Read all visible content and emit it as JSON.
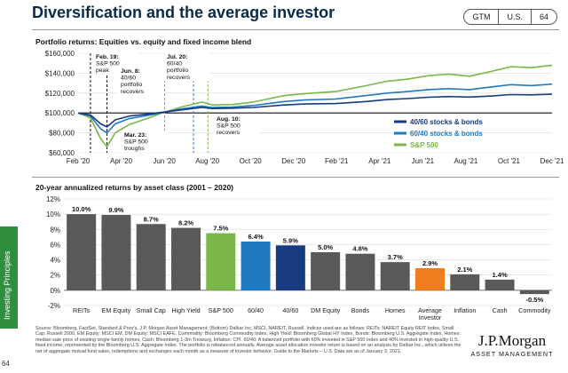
{
  "header": {
    "title": "Diversification and the average investor",
    "tags": [
      "GTM",
      "U.S.",
      "64"
    ]
  },
  "sidebar": {
    "label": "Investing Principles"
  },
  "page_number": "64",
  "footnote": "Source: Bloomberg, FactSet, Standard & Poor's, J.P. Morgan Asset Management; (Bottom) Dalbar Inc, MSCI, NAREIT, Russell. Indices used are as follows: REITs: NAREIT Equity REIT Index, Small Cap: Russell 2000, EM Equity: MSCI EM, DM Equity: MSCI EAFE, Commodity: Bloomberg Commodity Index, High Yield: Bloomberg Global HY Index, Bonds: Bloomberg U.S. Aggregate Index, Homes: median sale price of existing single-family homes, Cash: Bloomberg 1-3m Treasury, Inflation: CPI. 60/40: A balanced portfolio with 60% invested in S&P 500 Index and 40% invested in high-quality U.S. fixed income, represented by the Bloomberg U.S. Aggregate Index. The portfolio is rebalanced annually. Average asset allocation investor return is based on an analysis by Dalbar Inc., which utilizes the net of aggregate mutual fund sales, redemptions and exchanges each month as a measure of investor behavior. Guide to the Markets – U.S. Data are as of January 3, 2021.",
  "logo": {
    "name": "J.P.Morgan",
    "sub": "ASSET MANAGEMENT"
  },
  "chart_data": [
    {
      "type": "line",
      "title": "Portfolio returns: Equities vs. equity and fixed income blend",
      "xlabel": "",
      "ylabel": "",
      "x_ticks": [
        "Feb '20",
        "Apr '20",
        "Jun '20",
        "Aug '20",
        "Oct '20",
        "Dec '20",
        "Feb '21",
        "Apr '21",
        "Jun '21",
        "Aug '21",
        "Oct '21",
        "Dec '21"
      ],
      "y_ticks": [
        "$60,000",
        "$80,000",
        "$100,000",
        "$120,000",
        "$140,000",
        "$160,000"
      ],
      "ylim": [
        60000,
        160000
      ],
      "xlim_months": [
        0,
        23
      ],
      "grid": true,
      "legend_position": "lower-right",
      "series": [
        {
          "name": "40/60 stocks & bonds",
          "color": "#173a80",
          "points": [
            [
              0,
              100000
            ],
            [
              0.6,
              98000
            ],
            [
              1.1,
              89000
            ],
            [
              1.4,
              86000
            ],
            [
              1.8,
              93000
            ],
            [
              2.5,
              97000
            ],
            [
              3.5,
              99000
            ],
            [
              4.0,
              100500
            ],
            [
              5.0,
              103000
            ],
            [
              6.0,
              105500
            ],
            [
              6.5,
              104500
            ],
            [
              7.5,
              104800
            ],
            [
              8.5,
              105500
            ],
            [
              10.0,
              108000
            ],
            [
              11.0,
              109000
            ],
            [
              12.5,
              109500
            ],
            [
              14.0,
              111500
            ],
            [
              15.0,
              113500
            ],
            [
              16.0,
              114500
            ],
            [
              17.0,
              115800
            ],
            [
              18.0,
              116500
            ],
            [
              19.0,
              116000
            ],
            [
              20.0,
              117000
            ],
            [
              21.0,
              118500
            ],
            [
              22.0,
              118200
            ],
            [
              23.0,
              118800
            ]
          ]
        },
        {
          "name": "60/40 stocks & bonds",
          "color": "#1f7ac2",
          "points": [
            [
              0,
              100000
            ],
            [
              0.6,
              97000
            ],
            [
              1.1,
              84000
            ],
            [
              1.4,
              80000
            ],
            [
              1.8,
              89000
            ],
            [
              2.5,
              94500
            ],
            [
              3.5,
              98000
            ],
            [
              4.0,
              100000
            ],
            [
              5.0,
              104000
            ],
            [
              6.0,
              107000
            ],
            [
              6.5,
              105500
            ],
            [
              7.5,
              106000
            ],
            [
              8.5,
              107500
            ],
            [
              10.0,
              111500
            ],
            [
              11.0,
              113000
            ],
            [
              12.5,
              114000
            ],
            [
              14.0,
              117500
            ],
            [
              15.0,
              120000
            ],
            [
              16.0,
              121500
            ],
            [
              17.0,
              123500
            ],
            [
              18.0,
              124500
            ],
            [
              19.0,
              123500
            ],
            [
              20.0,
              126000
            ],
            [
              21.0,
              128500
            ],
            [
              22.0,
              127500
            ],
            [
              23.0,
              129000
            ]
          ]
        },
        {
          "name": "S&P 500",
          "color": "#7ab648",
          "points": [
            [
              0,
              100000
            ],
            [
              0.6,
              95000
            ],
            [
              1.1,
              74000
            ],
            [
              1.4,
              66000
            ],
            [
              1.8,
              80000
            ],
            [
              2.5,
              88500
            ],
            [
              3.5,
              95500
            ],
            [
              4.0,
              99500
            ],
            [
              5.0,
              106000
            ],
            [
              6.0,
              111000
            ],
            [
              6.5,
              108000
            ],
            [
              7.5,
              108500
            ],
            [
              8.5,
              111000
            ],
            [
              10.0,
              117500
            ],
            [
              11.0,
              119500
            ],
            [
              12.5,
              121500
            ],
            [
              14.0,
              127500
            ],
            [
              15.0,
              132000
            ],
            [
              16.0,
              134000
            ],
            [
              17.0,
              137500
            ],
            [
              18.0,
              139000
            ],
            [
              19.0,
              137000
            ],
            [
              20.0,
              141500
            ],
            [
              21.0,
              146500
            ],
            [
              22.0,
              145500
            ],
            [
              23.0,
              148000
            ]
          ]
        }
      ],
      "annotations": [
        {
          "label": "Feb. 19: S&P 500 peak",
          "x_month": 0.6
        },
        {
          "label": "Mar. 23: S&P 500 troughs",
          "x_month": 1.4
        },
        {
          "label": "Jun. 8: 40/60 portfolio recovers",
          "x_month": 4.2
        },
        {
          "label": "Jul. 20: 60/40 portfolio recovers",
          "x_month": 5.6
        },
        {
          "label": "Aug. 10: S&P 500 recovers",
          "x_month": 6.3
        }
      ]
    },
    {
      "type": "bar",
      "title": "20-year annualized returns by asset class (2001 – 2020)",
      "xlabel": "",
      "ylabel": "",
      "categories": [
        "REITs",
        "EM Equity",
        "Small Cap",
        "High Yield",
        "S&P 500",
        "60/40",
        "40/60",
        "DM Equity",
        "Bonds",
        "Homes",
        "Average Investor",
        "Inflation",
        "Cash",
        "Commodity"
      ],
      "values": [
        10.0,
        9.9,
        8.7,
        8.2,
        7.5,
        6.4,
        5.9,
        5.0,
        4.8,
        3.7,
        2.9,
        2.1,
        1.4,
        -0.5
      ],
      "value_labels": [
        "10.0%",
        "9.9%",
        "8.7%",
        "8.2%",
        "7.5%",
        "6.4%",
        "5.9%",
        "5.0%",
        "4.8%",
        "3.7%",
        "2.9%",
        "2.1%",
        "1.4%",
        "-0.5%"
      ],
      "colors": [
        "#595959",
        "#595959",
        "#595959",
        "#595959",
        "#7ab648",
        "#1f7ac2",
        "#173a80",
        "#595959",
        "#595959",
        "#595959",
        "#f07e1d",
        "#595959",
        "#595959",
        "#595959"
      ],
      "y_ticks": [
        "-2%",
        "0%",
        "2%",
        "4%",
        "6%",
        "8%",
        "10%",
        "12%"
      ],
      "ylim": [
        -2,
        12
      ],
      "grid": true
    }
  ]
}
